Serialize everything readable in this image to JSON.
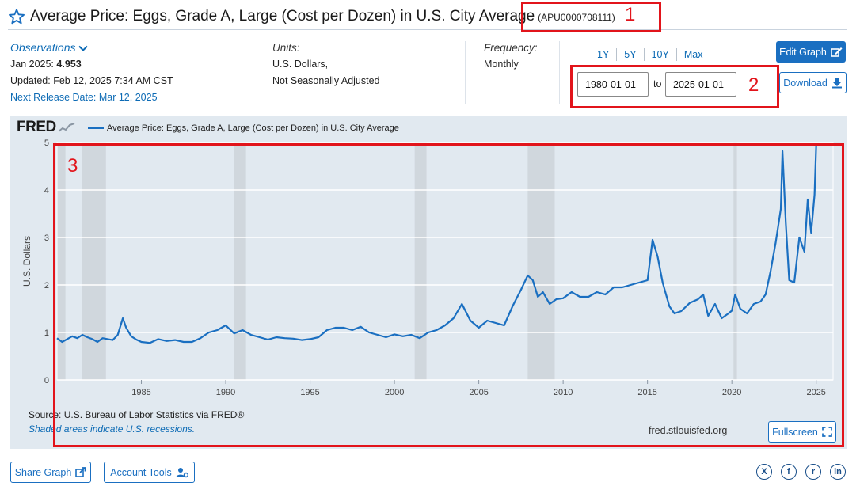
{
  "header": {
    "title": "Average Price: Eggs, Grade A, Large (Cost per Dozen) in U.S. City Average",
    "series_id": "(APU0000708111)",
    "star_icon": "star-outline-icon"
  },
  "observations": {
    "label": "Observations",
    "date": "Jan 2025:",
    "value": "4.953",
    "updated": "Updated: Feb 12, 2025 7:34 AM CST",
    "next_release": "Next Release Date: Mar 12, 2025"
  },
  "units": {
    "label": "Units:",
    "line1": "U.S. Dollars,",
    "line2": "Not Seasonally Adjusted"
  },
  "frequency": {
    "label": "Frequency:",
    "value": "Monthly"
  },
  "range_buttons": [
    "1Y",
    "5Y",
    "10Y",
    "Max"
  ],
  "date_range": {
    "start": "1980-01-01",
    "to_label": "to",
    "end": "2025-01-01"
  },
  "buttons": {
    "edit_graph": "Edit Graph",
    "download": "Download",
    "fullscreen": "Fullscreen",
    "share_graph": "Share Graph",
    "account_tools": "Account Tools"
  },
  "annotations": [
    "1",
    "2",
    "3"
  ],
  "colors": {
    "accent": "#1a6fc1",
    "line": "#1a6fc1",
    "annotation": "#e2141b",
    "chart_bg": "#e1e9f0",
    "recession": "#c9d0d7"
  },
  "social": [
    {
      "name": "x-icon",
      "glyph": "X"
    },
    {
      "name": "facebook-icon",
      "glyph": "f"
    },
    {
      "name": "reddit-icon",
      "glyph": "r"
    },
    {
      "name": "linkedin-icon",
      "glyph": "in"
    }
  ],
  "chart_data": {
    "type": "line",
    "logo": "FRED",
    "legend": "Average Price: Eggs, Grade A, Large (Cost per Dozen) in U.S. City Average",
    "ylabel": "U.S. Dollars",
    "ylim": [
      0,
      5
    ],
    "xlim": [
      1980.0,
      2026.0
    ],
    "yticks": [
      0,
      1,
      2,
      3,
      4,
      5
    ],
    "xticks": [
      1985,
      1990,
      1995,
      2000,
      2005,
      2010,
      2015,
      2020,
      2025
    ],
    "xtick_labels": [
      "1985",
      "1990",
      "1995",
      "2000",
      "2005",
      "2010",
      "2015",
      "2020",
      "2025"
    ],
    "grid": true,
    "source": "Source: U.S. Bureau of Labor Statistics via FRED®",
    "shaded_note": "Shaded areas indicate U.S. recessions.",
    "url": "fred.stlouisfed.org",
    "recessions": [
      [
        1980.0,
        1980.5
      ],
      [
        1981.5,
        1982.9
      ],
      [
        1990.5,
        1991.2
      ],
      [
        2001.2,
        2001.9
      ],
      [
        2007.9,
        2009.5
      ],
      [
        2020.1,
        2020.3
      ]
    ],
    "series": [
      {
        "name": "Average Price: Eggs, Grade A, Large (Cost per Dozen) in U.S. City Average",
        "x": [
          1980.0,
          1980.3,
          1980.6,
          1980.9,
          1981.2,
          1981.5,
          1981.8,
          1982.1,
          1982.4,
          1982.7,
          1983.0,
          1983.3,
          1983.6,
          1983.9,
          1984.1,
          1984.4,
          1984.7,
          1985.0,
          1985.5,
          1986.0,
          1986.5,
          1987.0,
          1987.5,
          1988.0,
          1988.5,
          1989.0,
          1989.5,
          1990.0,
          1990.5,
          1991.0,
          1991.5,
          1992.0,
          1992.5,
          1993.0,
          1993.5,
          1994.0,
          1994.5,
          1995.0,
          1995.5,
          1996.0,
          1996.5,
          1997.0,
          1997.5,
          1998.0,
          1998.5,
          1999.0,
          1999.5,
          2000.0,
          2000.5,
          2001.0,
          2001.5,
          2002.0,
          2002.5,
          2003.0,
          2003.5,
          2004.0,
          2004.5,
          2005.0,
          2005.5,
          2006.0,
          2006.5,
          2007.0,
          2007.5,
          2007.9,
          2008.2,
          2008.5,
          2008.8,
          2009.2,
          2009.6,
          2010.0,
          2010.5,
          2011.0,
          2011.5,
          2012.0,
          2012.5,
          2013.0,
          2013.5,
          2014.0,
          2014.5,
          2015.0,
          2015.3,
          2015.6,
          2015.9,
          2016.3,
          2016.6,
          2017.0,
          2017.5,
          2018.0,
          2018.3,
          2018.6,
          2019.0,
          2019.4,
          2019.8,
          2020.0,
          2020.2,
          2020.5,
          2020.9,
          2021.3,
          2021.7,
          2022.0,
          2022.3,
          2022.6,
          2022.9,
          2023.0,
          2023.2,
          2023.4,
          2023.7,
          2024.0,
          2024.3,
          2024.5,
          2024.7,
          2024.9,
          2025.0
        ],
        "values": [
          0.88,
          0.8,
          0.86,
          0.92,
          0.88,
          0.95,
          0.9,
          0.86,
          0.8,
          0.88,
          0.86,
          0.84,
          0.95,
          1.3,
          1.1,
          0.92,
          0.85,
          0.8,
          0.78,
          0.86,
          0.82,
          0.84,
          0.8,
          0.8,
          0.88,
          1.0,
          1.05,
          1.15,
          0.98,
          1.05,
          0.95,
          0.9,
          0.85,
          0.9,
          0.88,
          0.87,
          0.84,
          0.86,
          0.9,
          1.05,
          1.1,
          1.1,
          1.05,
          1.12,
          1.0,
          0.95,
          0.9,
          0.96,
          0.92,
          0.95,
          0.88,
          1.0,
          1.05,
          1.15,
          1.3,
          1.6,
          1.25,
          1.1,
          1.25,
          1.2,
          1.15,
          1.55,
          1.9,
          2.2,
          2.1,
          1.75,
          1.85,
          1.6,
          1.7,
          1.72,
          1.85,
          1.75,
          1.75,
          1.85,
          1.8,
          1.95,
          1.95,
          2.0,
          2.05,
          2.1,
          2.95,
          2.6,
          2.05,
          1.55,
          1.4,
          1.45,
          1.62,
          1.7,
          1.8,
          1.35,
          1.6,
          1.3,
          1.4,
          1.46,
          1.8,
          1.5,
          1.4,
          1.6,
          1.65,
          1.8,
          2.3,
          2.9,
          3.6,
          4.82,
          3.3,
          2.1,
          2.05,
          3.0,
          2.7,
          3.8,
          3.1,
          3.9,
          4.95
        ]
      }
    ]
  }
}
